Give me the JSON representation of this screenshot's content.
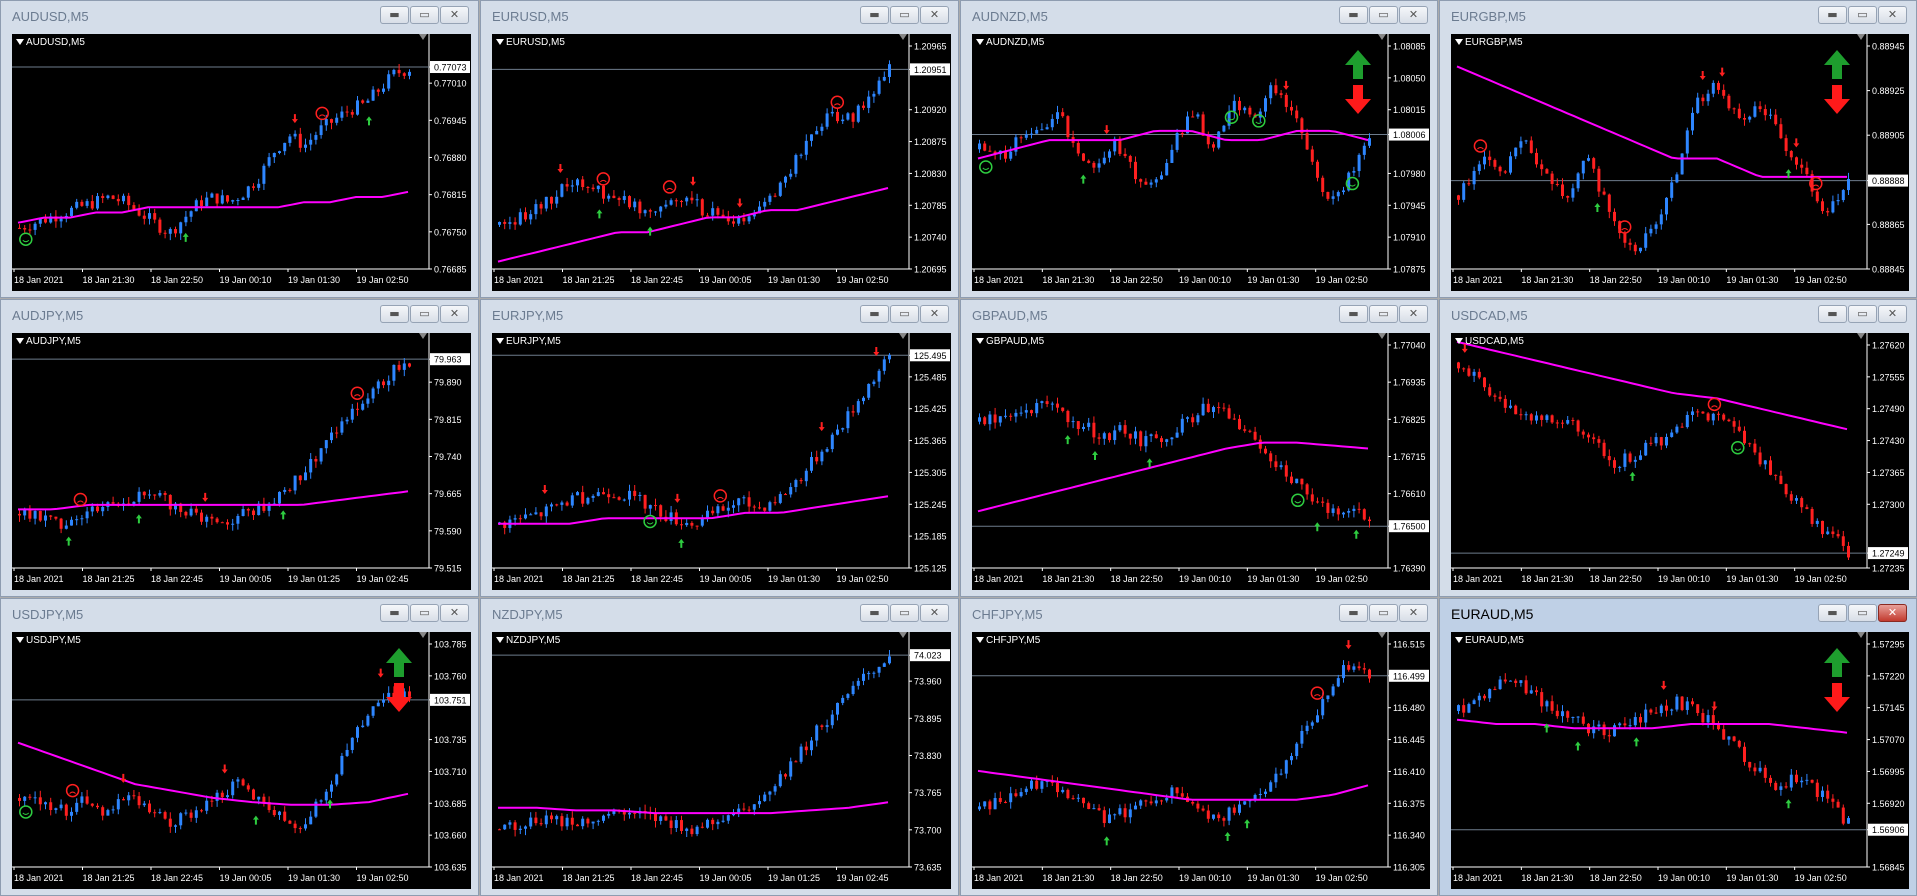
{
  "colors": {
    "up": "#2E86FF",
    "down": "#FF2020",
    "ma": "#FF00FF",
    "axis": "#FFFFFF",
    "bg": "#000000",
    "grid_line": "#6E7C8C",
    "buy_signal": "#2ECC40",
    "sell_signal": "#FF2020",
    "trend_up": "#1E9E2E",
    "trend_down": "#FF1A1A"
  },
  "icons": {
    "minimize": "minimize-icon",
    "maximize": "maximize-icon",
    "close": "close-icon"
  },
  "glyphs": {
    "min": "▬",
    "max": "▭",
    "close": "✕"
  },
  "active_window": "EURAUD,M5",
  "windows": [
    {
      "title": "AUDUSD,M5",
      "label": "AUDUSD,M5",
      "chart_data": {
        "type": "candlestick",
        "symbol": "AUDUSD",
        "timeframe": "M5",
        "price_labels": [
          "0.77073",
          "0.77010",
          "0.76945",
          "0.76880",
          "0.76815",
          "0.76750",
          "0.76685"
        ],
        "current_price": "0.77073",
        "time_labels": [
          "18 Jan 2021",
          "18 Jan 21:30",
          "18 Jan 22:50",
          "19 Jan 00:10",
          "19 Jan 01:30",
          "19 Jan 02:50"
        ],
        "ylim": [
          0.7668,
          0.7711
        ],
        "path": [
          0.7676,
          0.7677,
          0.7678,
          0.7679,
          0.768,
          0.7681,
          0.7682,
          0.7681,
          0.7679,
          0.7677,
          0.7675,
          0.7678,
          0.7681,
          0.7682,
          0.7681,
          0.7683,
          0.7686,
          0.7691,
          0.7694,
          0.7692,
          0.7695,
          0.7697,
          0.7699,
          0.77,
          0.7703,
          0.7706,
          0.7707
        ],
        "ma": [
          0.7677,
          0.7678,
          0.7678,
          0.7679,
          0.7679,
          0.768,
          0.768,
          0.768,
          0.768,
          0.768,
          0.768,
          0.7681,
          0.7681,
          0.7682,
          0.7682,
          0.7683
        ],
        "arrows_up": [
          0.43,
          0.9
        ],
        "arrows_down": [
          0.71
        ],
        "smiley_sell": [
          0.78
        ],
        "smiley_buy": [
          0.02
        ]
      }
    },
    {
      "title": "EURUSD,M5",
      "label": "EURUSD,M5",
      "chart_data": {
        "type": "candlestick",
        "symbol": "EURUSD",
        "timeframe": "M5",
        "price_labels": [
          "1.20965",
          "1.20951",
          "1.20920",
          "1.20875",
          "1.20830",
          "1.20785",
          "1.20740",
          "1.20695"
        ],
        "current_price": "1.20951",
        "time_labels": [
          "18 Jan 2021",
          "18 Jan 21:25",
          "18 Jan 22:45",
          "19 Jan 00:05",
          "19 Jan 01:30",
          "19 Jan 02:50"
        ],
        "ylim": [
          1.2068,
          1.2098
        ],
        "path": [
          1.2074,
          1.2075,
          1.2076,
          1.2078,
          1.208,
          1.2079,
          1.2078,
          1.2077,
          1.2076,
          1.2077,
          1.2078,
          1.2076,
          1.2075,
          1.2074,
          1.2076,
          1.2079,
          1.2083,
          1.2087,
          1.2089,
          1.2088,
          1.2092,
          1.2095
        ],
        "ma": [
          1.2069,
          1.207,
          1.2071,
          1.2072,
          1.2073,
          1.2073,
          1.2074,
          1.2075,
          1.2075,
          1.2076,
          1.2076,
          1.2077,
          1.2078,
          1.2079
        ],
        "arrows_up": [
          0.26,
          0.39
        ],
        "arrows_down": [
          0.16,
          0.5,
          0.62
        ],
        "smiley_sell": [
          0.27,
          0.44,
          0.87
        ],
        "smiley_buy": []
      }
    },
    {
      "title": "AUDNZD,M5",
      "label": "AUDNZD,M5",
      "chart_data": {
        "type": "candlestick",
        "symbol": "AUDNZD",
        "timeframe": "M5",
        "price_labels": [
          "1.08085",
          "1.08050",
          "1.08015",
          "1.08006",
          "1.07980",
          "1.07945",
          "1.07910",
          "1.07875"
        ],
        "current_price": "1.08006",
        "time_labels": [
          "18 Jan 2021",
          "18 Jan 21:30",
          "18 Jan 22:50",
          "19 Jan 00:10",
          "19 Jan 01:30",
          "19 Jan 02:50"
        ],
        "ylim": [
          1.0786,
          1.081
        ],
        "path": [
          1.0799,
          1.0798,
          1.08,
          1.0801,
          1.0803,
          1.0799,
          1.0797,
          1.08,
          1.0796,
          1.0795,
          1.08,
          1.0803,
          1.0799,
          1.0804,
          1.0802,
          1.0806,
          1.0803,
          1.0798,
          1.0793,
          1.0796,
          1.08
        ],
        "ma": [
          1.0798,
          1.0799,
          1.08,
          1.08,
          1.08,
          1.0801,
          1.0801,
          1.08,
          1.08,
          1.0801,
          1.0801,
          1.08
        ],
        "arrows_up": [
          0.27
        ],
        "arrows_down": [
          0.33,
          0.79
        ],
        "smiley_sell": [],
        "smiley_buy": [
          0.02,
          0.65,
          0.72,
          0.96
        ],
        "trend_arrows": "both"
      }
    },
    {
      "title": "EURGBP,M5",
      "label": "EURGBP,M5",
      "chart_data": {
        "type": "candlestick",
        "symbol": "EURGBP",
        "timeframe": "M5",
        "price_labels": [
          "0.88945",
          "0.88925",
          "0.88905",
          "0.88888",
          "0.88865",
          "0.88845"
        ],
        "current_price": "0.88888",
        "time_labels": [
          "18 Jan 2021",
          "18 Jan 21:30",
          "18 Jan 22:50",
          "19 Jan 00:10",
          "19 Jan 01:30",
          "19 Jan 02:50"
        ],
        "ylim": [
          0.8884,
          0.8896
        ],
        "path": [
          0.8888,
          0.889,
          0.8889,
          0.8891,
          0.8889,
          0.8888,
          0.889,
          0.8887,
          0.8885,
          0.8886,
          0.8889,
          0.8893,
          0.8894,
          0.8892,
          0.8893,
          0.8891,
          0.8889,
          0.8887,
          0.8889
        ],
        "ma": [
          0.8895,
          0.8894,
          0.8893,
          0.8892,
          0.8891,
          0.889,
          0.889,
          0.8889,
          0.8889,
          0.8889
        ],
        "arrows_up": [
          0.36,
          0.85
        ],
        "arrows_down": [
          0.63,
          0.68,
          0.87
        ],
        "smiley_sell": [
          0.06,
          0.43,
          0.92
        ],
        "smiley_buy": [],
        "trend_arrows": "both"
      }
    },
    {
      "title": "AUDJPY,M5",
      "label": "AUDJPY,M5",
      "chart_data": {
        "type": "candlestick",
        "symbol": "AUDJPY",
        "timeframe": "M5",
        "price_labels": [
          "79.963",
          "79.890",
          "79.815",
          "79.740",
          "79.665",
          "79.590",
          "79.515"
        ],
        "current_price": "79.963",
        "time_labels": [
          "18 Jan 2021",
          "18 Jan 21:25",
          "18 Jan 22:45",
          "19 Jan 00:05",
          "19 Jan 01:25",
          "19 Jan 02:45"
        ],
        "ylim": [
          79.5,
          79.99
        ],
        "path": [
          79.62,
          79.61,
          79.6,
          79.62,
          79.64,
          79.65,
          79.66,
          79.65,
          79.63,
          79.61,
          79.6,
          79.62,
          79.64,
          79.67,
          79.72,
          79.78,
          79.83,
          79.88,
          79.93,
          79.96
        ],
        "ma": [
          79.63,
          79.63,
          79.64,
          79.64,
          79.64,
          79.64,
          79.64,
          79.64,
          79.64,
          79.65,
          79.66,
          79.67
        ],
        "arrows_up": [
          0.13,
          0.31,
          0.68
        ],
        "arrows_down": [
          0.48
        ],
        "smiley_sell": [
          0.16,
          0.87
        ],
        "smiley_buy": []
      }
    },
    {
      "title": "EURJPY,M5",
      "label": "EURJPY,M5",
      "chart_data": {
        "type": "candlestick",
        "symbol": "EURJPY",
        "timeframe": "M5",
        "price_labels": [
          "125.495",
          "125.485",
          "125.425",
          "125.365",
          "125.305",
          "125.245",
          "125.185",
          "125.125"
        ],
        "current_price": "125.495",
        "time_labels": [
          "18 Jan 2021",
          "18 Jan 21:25",
          "18 Jan 22:45",
          "19 Jan 00:05",
          "19 Jan 01:30",
          "19 Jan 02:50"
        ],
        "ylim": [
          125.11,
          125.51
        ],
        "path": [
          125.19,
          125.2,
          125.21,
          125.23,
          125.24,
          125.25,
          125.24,
          125.22,
          125.2,
          125.19,
          125.21,
          125.23,
          125.22,
          125.24,
          125.28,
          125.33,
          125.38,
          125.44,
          125.49
        ],
        "ma": [
          125.19,
          125.19,
          125.19,
          125.2,
          125.2,
          125.2,
          125.2,
          125.21,
          125.21,
          125.22,
          125.23,
          125.24
        ],
        "arrows_up": [
          0.47
        ],
        "arrows_down": [
          0.12,
          0.46,
          0.83,
          0.97
        ],
        "smiley_sell": [
          0.57
        ],
        "smiley_buy": [
          0.39
        ]
      }
    },
    {
      "title": "GBPAUD,M5",
      "label": "GBPAUD,M5",
      "chart_data": {
        "type": "candlestick",
        "symbol": "GBPAUD",
        "timeframe": "M5",
        "price_labels": [
          "1.77040",
          "1.76935",
          "1.76825",
          "1.76715",
          "1.76610",
          "1.76500",
          "1.76390"
        ],
        "current_price": "1.76500",
        "time_labels": [
          "18 Jan 2021",
          "18 Jan 21:30",
          "18 Jan 22:50",
          "19 Jan 00:10",
          "19 Jan 01:30",
          "19 Jan 02:50"
        ],
        "ylim": [
          1.7636,
          1.771
        ],
        "path": [
          1.7685,
          1.7686,
          1.7688,
          1.769,
          1.7688,
          1.7684,
          1.768,
          1.7682,
          1.7678,
          1.768,
          1.7685,
          1.769,
          1.7688,
          1.7682,
          1.7675,
          1.7668,
          1.766,
          1.7655,
          1.7657,
          1.7652
        ],
        "ma": [
          1.7655,
          1.7658,
          1.7661,
          1.7664,
          1.7667,
          1.767,
          1.7673,
          1.7676,
          1.7678,
          1.7678,
          1.7677,
          1.7676
        ],
        "arrows_up": [
          0.23,
          0.3,
          0.44,
          0.87,
          0.97
        ],
        "arrows_down": [],
        "smiley_sell": [],
        "smiley_buy": [
          0.82
        ]
      }
    },
    {
      "title": "USDCAD,M5",
      "label": "USDCAD,M5",
      "chart_data": {
        "type": "candlestick",
        "symbol": "USDCAD",
        "timeframe": "M5",
        "price_labels": [
          "1.27620",
          "1.27555",
          "1.27490",
          "1.27430",
          "1.27365",
          "1.27300",
          "1.27249",
          "1.27235"
        ],
        "current_price": "1.27249",
        "time_labels": [
          "18 Jan 2021",
          "18 Jan 21:30",
          "18 Jan 22:50",
          "19 Jan 00:10",
          "19 Jan 01:30",
          "19 Jan 02:50"
        ],
        "ylim": [
          1.2722,
          1.2765
        ],
        "path": [
          1.2762,
          1.2758,
          1.2754,
          1.2752,
          1.2751,
          1.275,
          1.2748,
          1.2742,
          1.2744,
          1.2746,
          1.2749,
          1.2752,
          1.2751,
          1.2748,
          1.2743,
          1.2738,
          1.2733,
          1.2729,
          1.2725
        ],
        "ma": [
          1.2766,
          1.2764,
          1.2762,
          1.276,
          1.2758,
          1.2756,
          1.2755,
          1.2753,
          1.2751,
          1.2749
        ],
        "arrows_up": [
          0.45
        ],
        "arrows_down": [
          0.02
        ],
        "smiley_sell": [
          0.66
        ],
        "smiley_buy": [
          0.72
        ]
      }
    },
    {
      "title": "USDJPY,M5",
      "label": "USDJPY,M5",
      "chart_data": {
        "type": "candlestick",
        "symbol": "USDJPY",
        "timeframe": "M5",
        "price_labels": [
          "103.785",
          "103.760",
          "103.751",
          "103.735",
          "103.710",
          "103.685",
          "103.660",
          "103.635"
        ],
        "current_price": "103.751",
        "time_labels": [
          "18 Jan 2021",
          "18 Jan 21:25",
          "18 Jan 22:45",
          "19 Jan 00:05",
          "19 Jan 01:30",
          "19 Jan 02:50"
        ],
        "ylim": [
          103.63,
          103.79
        ],
        "path": [
          103.68,
          103.68,
          103.67,
          103.68,
          103.67,
          103.68,
          103.67,
          103.66,
          103.67,
          103.68,
          103.69,
          103.68,
          103.67,
          103.66,
          103.68,
          103.71,
          103.74,
          103.76,
          103.75
        ],
        "ma": [
          103.72,
          103.71,
          103.7,
          103.69,
          103.685,
          103.68,
          103.677,
          103.675,
          103.675,
          103.677,
          103.683
        ],
        "arrows_up": [
          0.61,
          0.8
        ],
        "arrows_down": [
          0.27,
          0.53,
          0.93
        ],
        "smiley_sell": [
          0.14
        ],
        "smiley_buy": [
          0.02
        ],
        "trend_arrows": "both"
      }
    },
    {
      "title": "NZDJPY,M5",
      "label": "NZDJPY,M5",
      "chart_data": {
        "type": "candlestick",
        "symbol": "NZDJPY",
        "timeframe": "M5",
        "price_labels": [
          "74.023",
          "73.960",
          "73.895",
          "73.830",
          "73.765",
          "73.700",
          "73.635"
        ],
        "current_price": "74.023",
        "time_labels": [
          "18 Jan 2021",
          "18 Jan 21:25",
          "18 Jan 22:45",
          "19 Jan 00:05",
          "19 Jan 01:25",
          "19 Jan 02:45"
        ],
        "ylim": [
          73.63,
          74.04
        ],
        "path": [
          73.7,
          73.71,
          73.72,
          73.71,
          73.72,
          73.73,
          73.72,
          73.71,
          73.7,
          73.72,
          73.74,
          73.77,
          73.82,
          73.88,
          73.93,
          73.98,
          74.02
        ],
        "ma": [
          73.74,
          73.74,
          73.735,
          73.735,
          73.73,
          73.73,
          73.73,
          73.73,
          73.735,
          73.74,
          73.75
        ],
        "arrows_up": [],
        "arrows_down": [],
        "smiley_sell": [],
        "smiley_buy": []
      }
    },
    {
      "title": "CHFJPY,M5",
      "label": "CHFJPY,M5",
      "chart_data": {
        "type": "candlestick",
        "symbol": "CHFJPY",
        "timeframe": "M5",
        "price_labels": [
          "116.515",
          "116.499",
          "116.480",
          "116.445",
          "116.410",
          "116.375",
          "116.340",
          "116.305"
        ],
        "current_price": "116.499",
        "time_labels": [
          "18 Jan 2021",
          "18 Jan 21:30",
          "18 Jan 22:50",
          "19 Jan 00:10",
          "19 Jan 01:30",
          "19 Jan 02:50"
        ],
        "ylim": [
          116.3,
          116.53
        ],
        "path": [
          116.36,
          116.37,
          116.38,
          116.39,
          116.38,
          116.36,
          116.35,
          116.36,
          116.37,
          116.38,
          116.36,
          116.35,
          116.36,
          116.38,
          116.4,
          116.44,
          116.48,
          116.51,
          116.5
        ],
        "ma": [
          116.4,
          116.395,
          116.39,
          116.385,
          116.38,
          116.375,
          116.37,
          116.37,
          116.37,
          116.37,
          116.375,
          116.385
        ],
        "arrows_up": [
          0.33,
          0.64,
          0.69
        ],
        "arrows_down": [
          0.95
        ],
        "smiley_sell": [
          0.87
        ],
        "smiley_buy": []
      }
    },
    {
      "title": "EURAUD,M5",
      "label": "EURAUD,M5",
      "chart_data": {
        "type": "candlestick",
        "symbol": "EURAUD",
        "timeframe": "M5",
        "price_labels": [
          "1.57295",
          "1.57220",
          "1.57145",
          "1.57070",
          "1.56995",
          "1.56920",
          "1.56906",
          "1.56845"
        ],
        "current_price": "1.56906",
        "time_labels": [
          "18 Jan 2021",
          "18 Jan 21:30",
          "18 Jan 22:50",
          "19 Jan 00:10",
          "19 Jan 01:30",
          "19 Jan 02:50"
        ],
        "ylim": [
          1.5682,
          1.5733
        ],
        "path": [
          1.5718,
          1.5722,
          1.5726,
          1.5722,
          1.5718,
          1.5715,
          1.5713,
          1.5715,
          1.5718,
          1.572,
          1.5717,
          1.5712,
          1.5706,
          1.57,
          1.5703,
          1.5698,
          1.5692
        ],
        "ma": [
          1.5716,
          1.5715,
          1.5715,
          1.5714,
          1.5714,
          1.5714,
          1.5715,
          1.5715,
          1.5715,
          1.5714,
          1.5713
        ],
        "arrows_up": [
          0.23,
          0.31,
          0.46,
          0.85
        ],
        "arrows_down": [
          0.53,
          0.66
        ],
        "smiley_sell": [],
        "smiley_buy": [],
        "trend_arrows": "both"
      }
    }
  ]
}
